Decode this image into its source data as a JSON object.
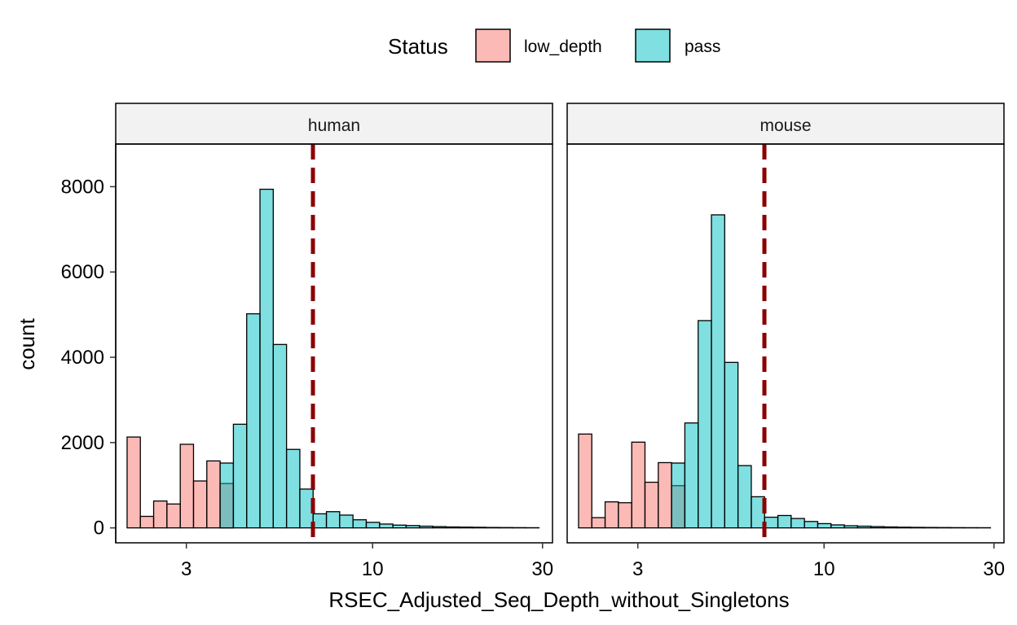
{
  "chart_data": {
    "type": "bar",
    "subtype": "faceted-histogram",
    "xlabel": "RSEC_Adjusted_Seq_Depth_without_Singletons",
    "ylabel": "count",
    "x_scale": "log10",
    "x_ticks": [
      3,
      10,
      30
    ],
    "x_tick_labels": [
      "3",
      "10",
      "30"
    ],
    "xlim": [
      1.9,
      32
    ],
    "y_ticks": [
      0,
      2000,
      4000,
      6000,
      8000
    ],
    "y_tick_labels": [
      "0",
      "2000",
      "4000",
      "6000",
      "8000"
    ],
    "ylim": [
      -350,
      9000
    ],
    "grid": false,
    "legend": {
      "title": "Status",
      "position": "top",
      "entries": [
        {
          "key": "low_depth",
          "label": "low_depth",
          "color": "#F8766D"
        },
        {
          "key": "pass",
          "label": "pass",
          "color": "#00BFC4"
        }
      ]
    },
    "bar_alpha": 0.5,
    "bin_edges": [
      2.045,
      2.228,
      2.428,
      2.646,
      2.884,
      3.142,
      3.424,
      3.731,
      4.066,
      4.431,
      4.828,
      5.261,
      5.733,
      6.248,
      6.808,
      7.419,
      8.084,
      8.81,
      9.6,
      10.461,
      11.4,
      12.422,
      13.537,
      14.751,
      16.074,
      17.516,
      19.087,
      20.799,
      22.665,
      24.698,
      26.913,
      29.327
    ],
    "threshold_color": "#8B0000",
    "facets": [
      {
        "name": "human",
        "threshold": 6.8,
        "series": [
          {
            "name": "low_depth",
            "values": [
              2130,
              270,
              630,
              560,
              1960,
              1100,
              1570,
              1040,
              0,
              0,
              0,
              0,
              0,
              0,
              0,
              0,
              0,
              0,
              0,
              0,
              0,
              0,
              0,
              0,
              0,
              0,
              0,
              0,
              0,
              0,
              0
            ]
          },
          {
            "name": "pass",
            "values": [
              0,
              0,
              0,
              0,
              0,
              0,
              0,
              1520,
              2430,
              5020,
              7940,
              4300,
              1840,
              910,
              330,
              380,
              300,
              190,
              130,
              90,
              65,
              55,
              40,
              30,
              22,
              18,
              14,
              10,
              8,
              6,
              4
            ]
          }
        ]
      },
      {
        "name": "mouse",
        "threshold": 6.8,
        "series": [
          {
            "name": "low_depth",
            "values": [
              2200,
              240,
              610,
              590,
              2010,
              1070,
              1530,
              990,
              0,
              0,
              0,
              0,
              0,
              0,
              0,
              0,
              0,
              0,
              0,
              0,
              0,
              0,
              0,
              0,
              0,
              0,
              0,
              0,
              0,
              0,
              0
            ]
          },
          {
            "name": "pass",
            "values": [
              0,
              0,
              0,
              0,
              0,
              0,
              0,
              1520,
              2460,
              4860,
              7340,
              3880,
              1460,
              730,
              250,
              290,
              220,
              150,
              100,
              70,
              50,
              40,
              30,
              22,
              16,
              12,
              10,
              8,
              6,
              5,
              4
            ]
          }
        ]
      }
    ]
  }
}
